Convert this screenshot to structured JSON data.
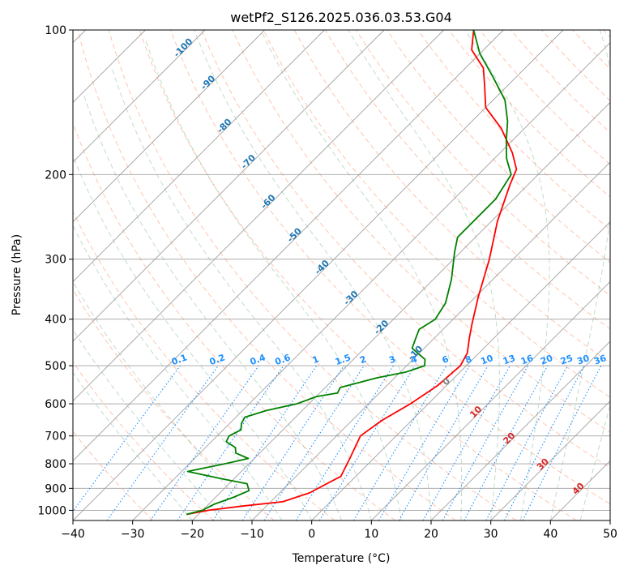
{
  "chart_data": {
    "type": "line",
    "title": "wetPf2_S126.2025.036.03.53.G04",
    "xlabel": "Temperature (°C)",
    "ylabel": "Pressure (hPa)",
    "xlim": [
      -40,
      50
    ],
    "ylim": [
      1050,
      100
    ],
    "y_scale": "log",
    "skew": 45,
    "x_ticks": [
      -40,
      -30,
      -20,
      -10,
      0,
      10,
      20,
      30,
      40,
      50
    ],
    "y_ticks": [
      100,
      200,
      300,
      400,
      500,
      600,
      700,
      800,
      900,
      1000
    ],
    "grid": true,
    "colors": {
      "temperature": "#ff0000",
      "dewpoint": "#008000",
      "isotherm": "#a0a0a0",
      "dry_adiabat": "#ff7f50",
      "moist_adiabat": "#2e8b57",
      "mixing_ratio": "#1e90ff",
      "blue_label": "#1f77b4",
      "red_label": "#d62728"
    },
    "series": [
      {
        "name": "",
        "role": "temperature",
        "points": [
          [
            -22,
            1020
          ],
          [
            -19,
            1000
          ],
          [
            -14,
            980
          ],
          [
            -8,
            960
          ],
          [
            -5,
            920
          ],
          [
            -2.5,
            850
          ],
          [
            -4,
            780
          ],
          [
            -6,
            700
          ],
          [
            -5,
            650
          ],
          [
            -3,
            600
          ],
          [
            -1.5,
            550
          ],
          [
            -1,
            500
          ],
          [
            -2,
            470
          ],
          [
            -4,
            440
          ],
          [
            -6,
            410
          ],
          [
            -9.5,
            360
          ],
          [
            -14,
            300
          ],
          [
            -19,
            250
          ],
          [
            -23,
            210
          ],
          [
            -24.5,
            195
          ],
          [
            -28,
            180
          ],
          [
            -34,
            160
          ],
          [
            -40,
            145
          ],
          [
            -44,
            130
          ],
          [
            -47,
            120
          ],
          [
            -52,
            110
          ],
          [
            -55,
            100
          ]
        ]
      },
      {
        "name": "",
        "role": "dewpoint",
        "points": [
          [
            -22,
            1020
          ],
          [
            -20,
            1000
          ],
          [
            -19,
            970
          ],
          [
            -17,
            940
          ],
          [
            -15.5,
            910
          ],
          [
            -17,
            880
          ],
          [
            -22,
            860
          ],
          [
            -29,
            830
          ],
          [
            -24,
            800
          ],
          [
            -21,
            780
          ],
          [
            -24,
            760
          ],
          [
            -25,
            740
          ],
          [
            -27.5,
            720
          ],
          [
            -28,
            700
          ],
          [
            -27,
            680
          ],
          [
            -28,
            660
          ],
          [
            -28.5,
            640
          ],
          [
            -26,
            620
          ],
          [
            -22,
            600
          ],
          [
            -20,
            580
          ],
          [
            -17,
            570
          ],
          [
            -17.5,
            555
          ],
          [
            -13,
            530
          ],
          [
            -9,
            515
          ],
          [
            -7,
            500
          ],
          [
            -8,
            485
          ],
          [
            -12,
            460
          ],
          [
            -13,
            440
          ],
          [
            -14,
            420
          ],
          [
            -13,
            400
          ],
          [
            -14,
            370
          ],
          [
            -17,
            330
          ],
          [
            -21,
            290
          ],
          [
            -23,
            270
          ],
          [
            -23,
            250
          ],
          [
            -23,
            225
          ],
          [
            -24.5,
            200
          ],
          [
            -28,
            185
          ],
          [
            -31,
            170
          ],
          [
            -34,
            155
          ],
          [
            -38,
            140
          ],
          [
            -44,
            125
          ],
          [
            -50,
            112
          ],
          [
            -55,
            100
          ]
        ]
      }
    ],
    "mixing_ratio_labels": [
      "0.1",
      "0.2",
      "0.4",
      "0.6",
      "1",
      "1.5",
      "2",
      "3",
      "4",
      "6",
      "8",
      "10",
      "13",
      "16",
      "20",
      "25",
      "30",
      "36"
    ],
    "mixing_ratio_values": [
      0.1,
      0.2,
      0.4,
      0.6,
      1,
      1.5,
      2,
      3,
      4,
      6,
      8,
      10,
      13,
      16,
      20,
      25,
      30,
      36
    ],
    "blue_labels": [
      {
        "text": "-100",
        "T": -100,
        "p": 110
      },
      {
        "text": "-90",
        "T": -90,
        "p": 130
      },
      {
        "text": "-80",
        "T": -80,
        "p": 160
      },
      {
        "text": "-70",
        "T": -70,
        "p": 190
      },
      {
        "text": "-60",
        "T": -60,
        "p": 230
      },
      {
        "text": "-50",
        "T": -50,
        "p": 270
      },
      {
        "text": "-40",
        "T": -40,
        "p": 315
      },
      {
        "text": "-30",
        "T": -30,
        "p": 365
      },
      {
        "text": "-20",
        "T": -20,
        "p": 420
      },
      {
        "text": "-10",
        "T": -10,
        "p": 475
      }
    ],
    "red_labels": [
      {
        "text": "0",
        "T": 0,
        "p": 545
      },
      {
        "text": "10",
        "T": 10,
        "p": 630
      },
      {
        "text": "20",
        "T": 20,
        "p": 715
      },
      {
        "text": "30",
        "T": 30,
        "p": 810
      },
      {
        "text": "40",
        "T": 40,
        "p": 910
      }
    ]
  }
}
